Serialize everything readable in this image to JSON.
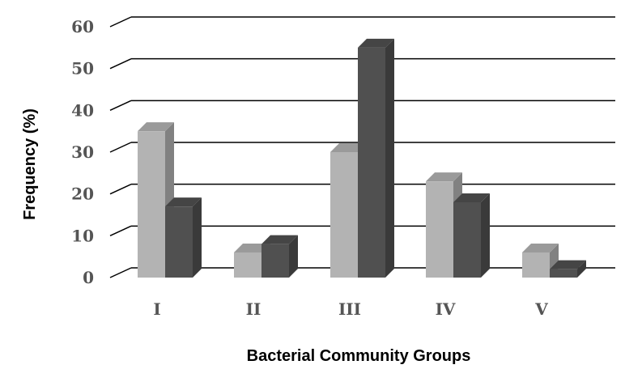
{
  "chart_data": {
    "type": "bar",
    "categories": [
      "I",
      "II",
      "III",
      "IV",
      "V"
    ],
    "series": [
      {
        "values": [
          35,
          6,
          30,
          23,
          6
        ],
        "color": "#b3b3b3"
      },
      {
        "values": [
          17,
          8,
          55,
          18,
          2
        ],
        "color": "#505050"
      }
    ],
    "yticks": [
      "0",
      "10",
      "20",
      "30",
      "40",
      "50",
      "60"
    ],
    "ylim": [
      0,
      60
    ],
    "xlabel": "Bacterial Community Groups",
    "ylabel": "Frequency (%)",
    "grid": true,
    "legend": "none",
    "style": "3d-clustered-column"
  }
}
